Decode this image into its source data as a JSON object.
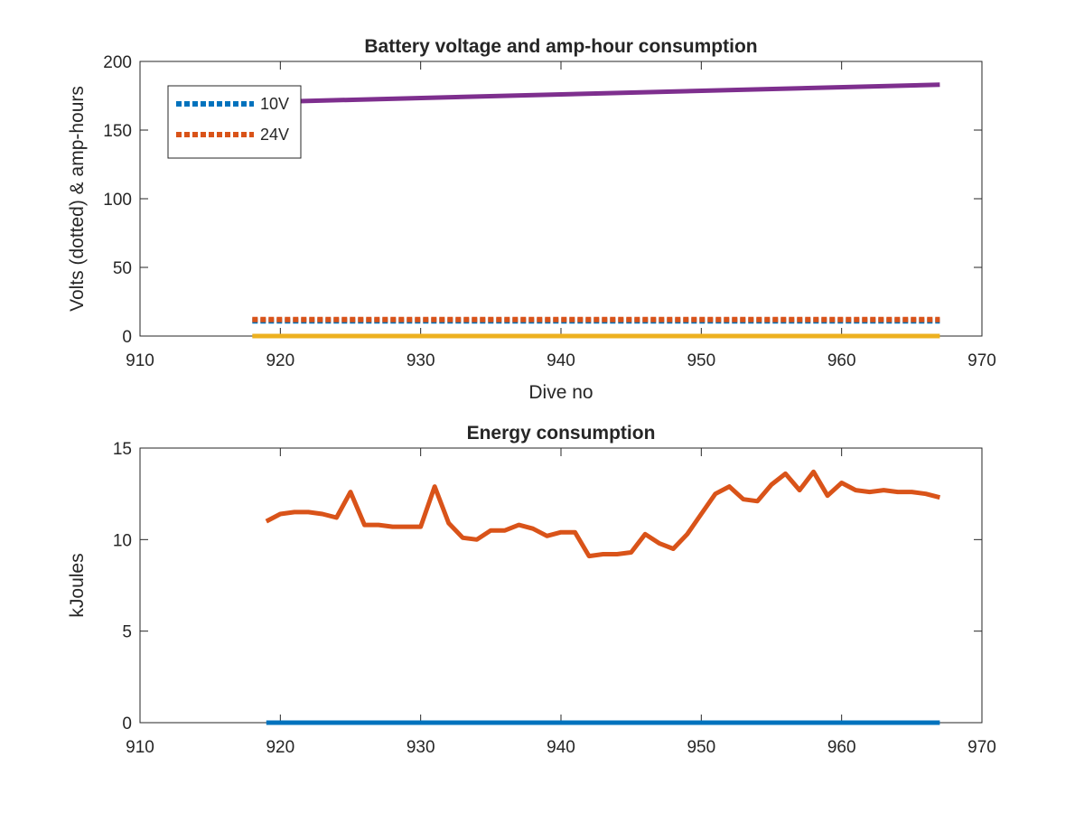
{
  "chart_data": [
    {
      "type": "line",
      "title": "Battery voltage and amp-hour consumption",
      "xlabel": "Dive no",
      "ylabel": "Volts (dotted) & amp-hours",
      "xlim": [
        910,
        970
      ],
      "ylim": [
        0,
        200
      ],
      "xticks": [
        "910",
        "920",
        "930",
        "940",
        "950",
        "960",
        "970"
      ],
      "yticks": [
        "0",
        "50",
        "100",
        "150",
        "200"
      ],
      "grid": false,
      "legend_position": "top-left",
      "series": [
        {
          "name": "10V",
          "style": "dotted",
          "color": "#0072BD",
          "x": [
            918,
            967
          ],
          "y": [
            11,
            11
          ]
        },
        {
          "name": "24V",
          "style": "dotted",
          "color": "#D95319",
          "x": [
            918,
            967
          ],
          "y": [
            12,
            12
          ]
        },
        {
          "style": "solid",
          "color": "#7E2F8E",
          "x": [
            921,
            967
          ],
          "y": [
            171,
            183
          ]
        },
        {
          "style": "solid",
          "color": "#EDB120",
          "x": [
            918,
            967
          ],
          "y": [
            0,
            0
          ]
        }
      ]
    },
    {
      "type": "line",
      "title": "Energy consumption",
      "xlabel": "",
      "ylabel": "kJoules",
      "xlim": [
        910,
        970
      ],
      "ylim": [
        0,
        15
      ],
      "xticks": [
        "910",
        "920",
        "930",
        "940",
        "950",
        "960",
        "970"
      ],
      "yticks": [
        "0",
        "5",
        "10",
        "15"
      ],
      "grid": false,
      "series": [
        {
          "style": "solid",
          "color": "#D95319",
          "x": [
            919,
            920,
            921,
            922,
            923,
            924,
            925,
            926,
            927,
            928,
            929,
            930,
            931,
            932,
            933,
            934,
            935,
            936,
            937,
            938,
            939,
            940,
            941,
            942,
            943,
            944,
            945,
            946,
            947,
            948,
            949,
            950,
            951,
            952,
            953,
            954,
            955,
            956,
            957,
            958,
            959,
            960,
            961,
            962,
            963,
            964,
            965,
            966,
            967
          ],
          "y": [
            11.0,
            11.4,
            11.5,
            11.5,
            11.4,
            11.2,
            12.6,
            10.8,
            10.8,
            10.7,
            10.7,
            10.7,
            12.9,
            10.9,
            10.1,
            10.0,
            10.5,
            10.5,
            10.8,
            10.6,
            10.2,
            10.4,
            10.4,
            9.1,
            9.2,
            9.2,
            9.3,
            10.3,
            9.8,
            9.5,
            10.3,
            11.4,
            12.5,
            12.9,
            12.2,
            12.1,
            13.0,
            13.6,
            12.7,
            13.7,
            12.4,
            13.1,
            12.7,
            12.6,
            12.7,
            12.6,
            12.6,
            12.5,
            12.3
          ]
        },
        {
          "style": "solid",
          "color": "#0072BD",
          "x": [
            919,
            967
          ],
          "y": [
            0,
            0
          ]
        }
      ]
    }
  ]
}
